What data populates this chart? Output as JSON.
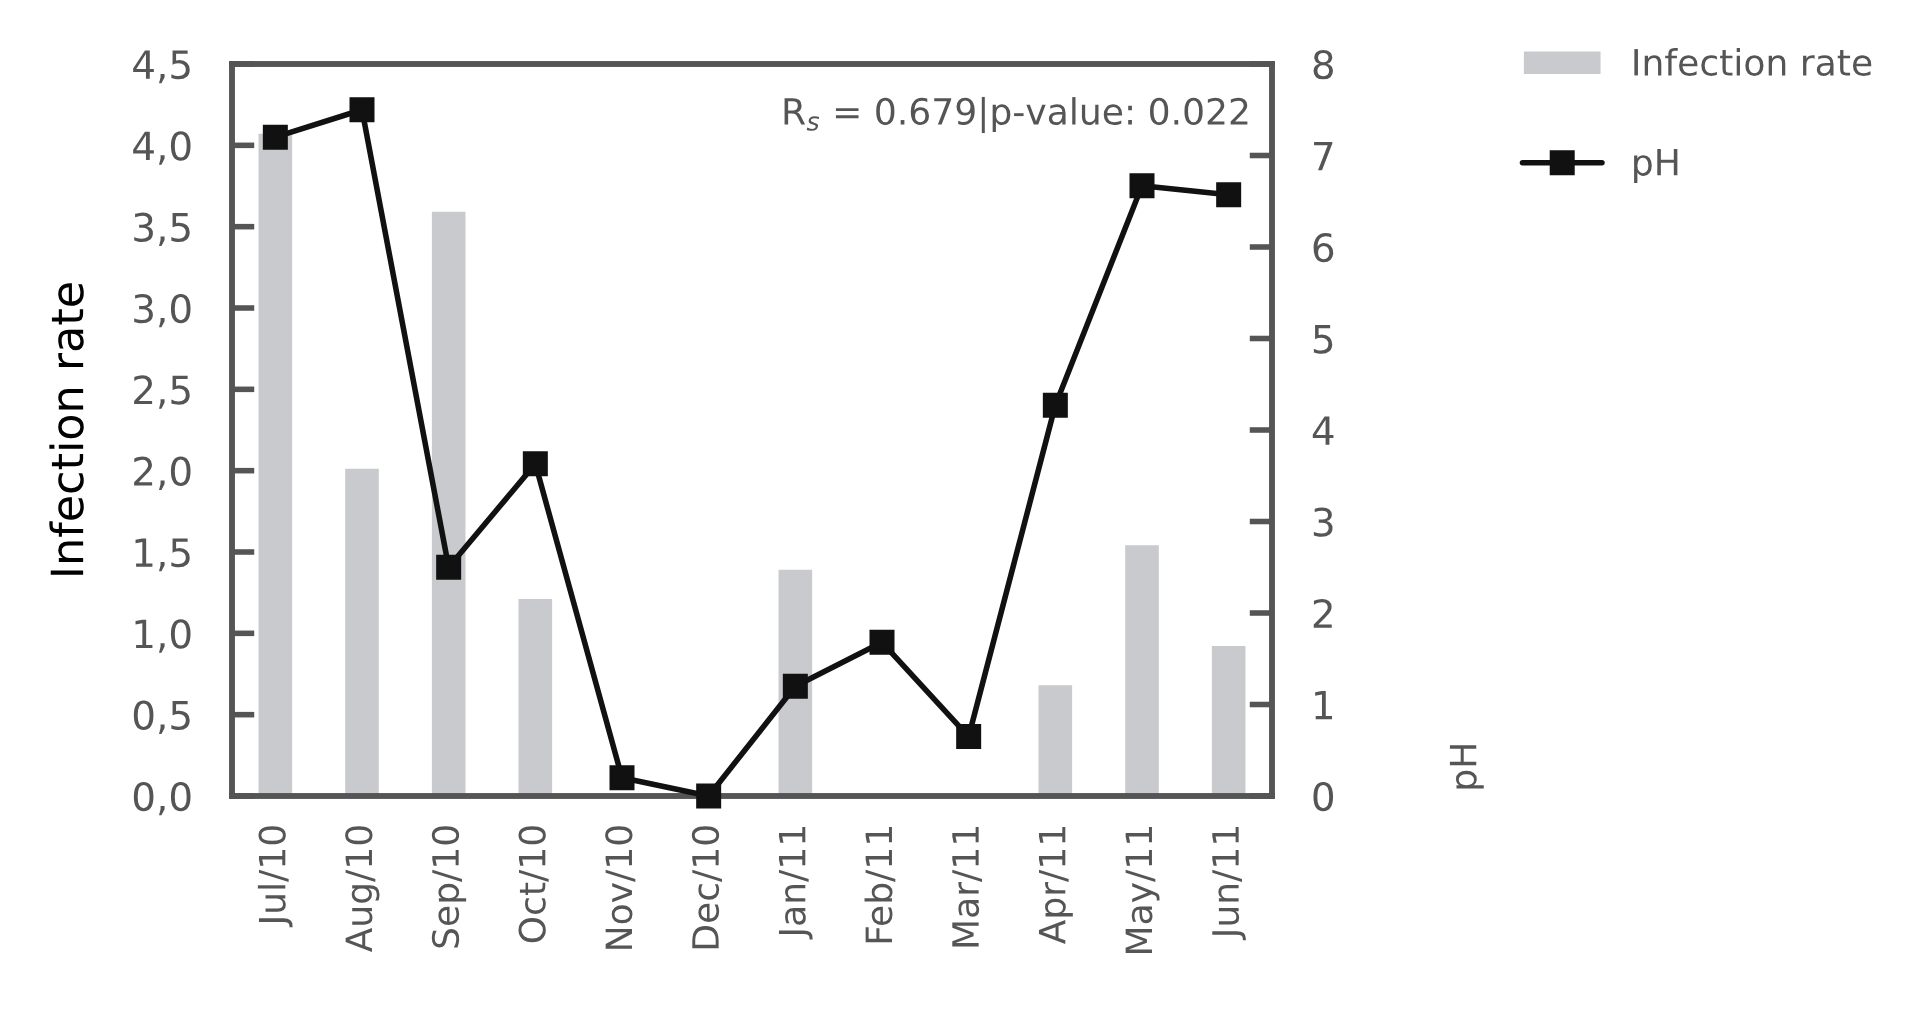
{
  "chart_data": {
    "type": "bar",
    "categories": [
      "Jul/10",
      "Aug/10",
      "Sep/10",
      "Oct/10",
      "Nov/10",
      "Dec/10",
      "Jan/11",
      "Feb/11",
      "Mar/11",
      "Apr/11",
      "May/11",
      "Jun/11"
    ],
    "series": [
      {
        "name": "Infection rate",
        "color": "#c8cacd",
        "values": [
          4.08,
          2.02,
          3.6,
          1.22,
          null,
          null,
          1.4,
          null,
          null,
          0.69,
          1.55,
          0.93
        ]
      },
      {
        "name": "pH",
        "type": "line",
        "axis": "y2",
        "color": "#111111",
        "marker": "square",
        "values": [
          7.2,
          7.5,
          2.5,
          3.63,
          0.2,
          0,
          1.2,
          1.68,
          0.65,
          4.27,
          6.67,
          6.57
        ]
      }
    ],
    "ylabel": "Infection rate",
    "y2label": "pH",
    "ylim": [
      0,
      4.5
    ],
    "yticks": [
      {
        "value": 0,
        "label": "0,0"
      },
      {
        "value": 0.5,
        "label": "0,5"
      },
      {
        "value": 1,
        "label": "1,0"
      },
      {
        "value": 1.5,
        "label": "1,5"
      },
      {
        "value": 2,
        "label": "2,0"
      },
      {
        "value": 2.5,
        "label": "2,5"
      },
      {
        "value": 3,
        "label": "3,0"
      },
      {
        "value": 3.5,
        "label": "3,5"
      },
      {
        "value": 4,
        "label": "4,0"
      },
      {
        "value": 4.5,
        "label": "4,5"
      }
    ],
    "y2lim": [
      0,
      8
    ],
    "y2ticks": [
      0,
      1,
      2,
      3,
      4,
      5,
      6,
      7,
      8
    ],
    "annotations": [
      "R$_{s}$ = 0.679|p-value: 0.022"
    ],
    "legend": "top right",
    "grid": false
  }
}
